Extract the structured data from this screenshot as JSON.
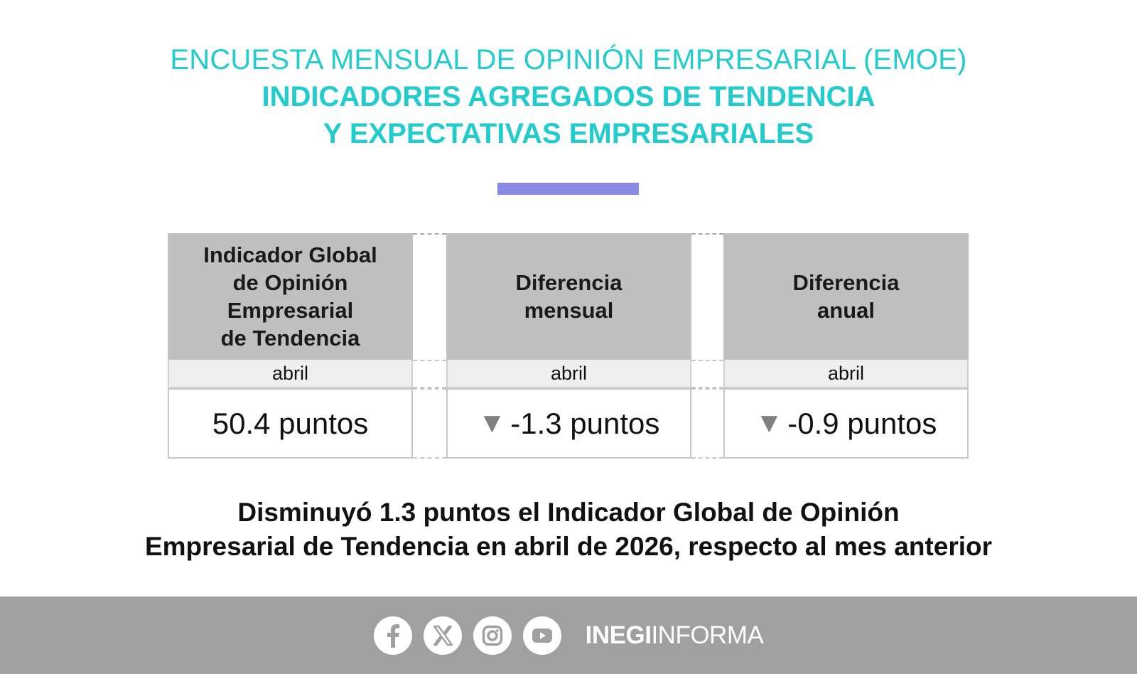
{
  "header": {
    "line1": "ENCUESTA MENSUAL DE OPINIÓN EMPRESARIAL (EMOE)",
    "line2": "INDICADORES AGREGADOS DE TENDENCIA",
    "line3": "Y EXPECTATIVAS EMPRESARIALES",
    "color": "#22cccc",
    "accent_color": "#8a8ae6"
  },
  "indicators": [
    {
      "heading_lines": [
        "Indicador Global",
        "de Opinión",
        "Empresarial",
        "de Tendencia"
      ],
      "period": "abril",
      "value": "50.4 puntos",
      "trend_icon": ""
    },
    {
      "heading_lines": [
        "Diferencia",
        "mensual"
      ],
      "period": "abril",
      "value": "-1.3 puntos",
      "trend_icon": "▼"
    },
    {
      "heading_lines": [
        "Diferencia",
        "anual"
      ],
      "period": "abril",
      "value": "-0.9 puntos",
      "trend_icon": "▼"
    }
  ],
  "summary": {
    "line1": "Disminuyó 1.3 puntos el Indicador Global de Opinión",
    "line2": "Empresarial de Tendencia en abril de 2026, respecto al mes anterior"
  },
  "footer": {
    "icons": [
      "facebook-icon",
      "x-icon",
      "instagram-icon",
      "youtube-icon"
    ],
    "brand_bold": "INEGI",
    "brand_regular": "INFORMA",
    "background": "#a0a0a0"
  }
}
